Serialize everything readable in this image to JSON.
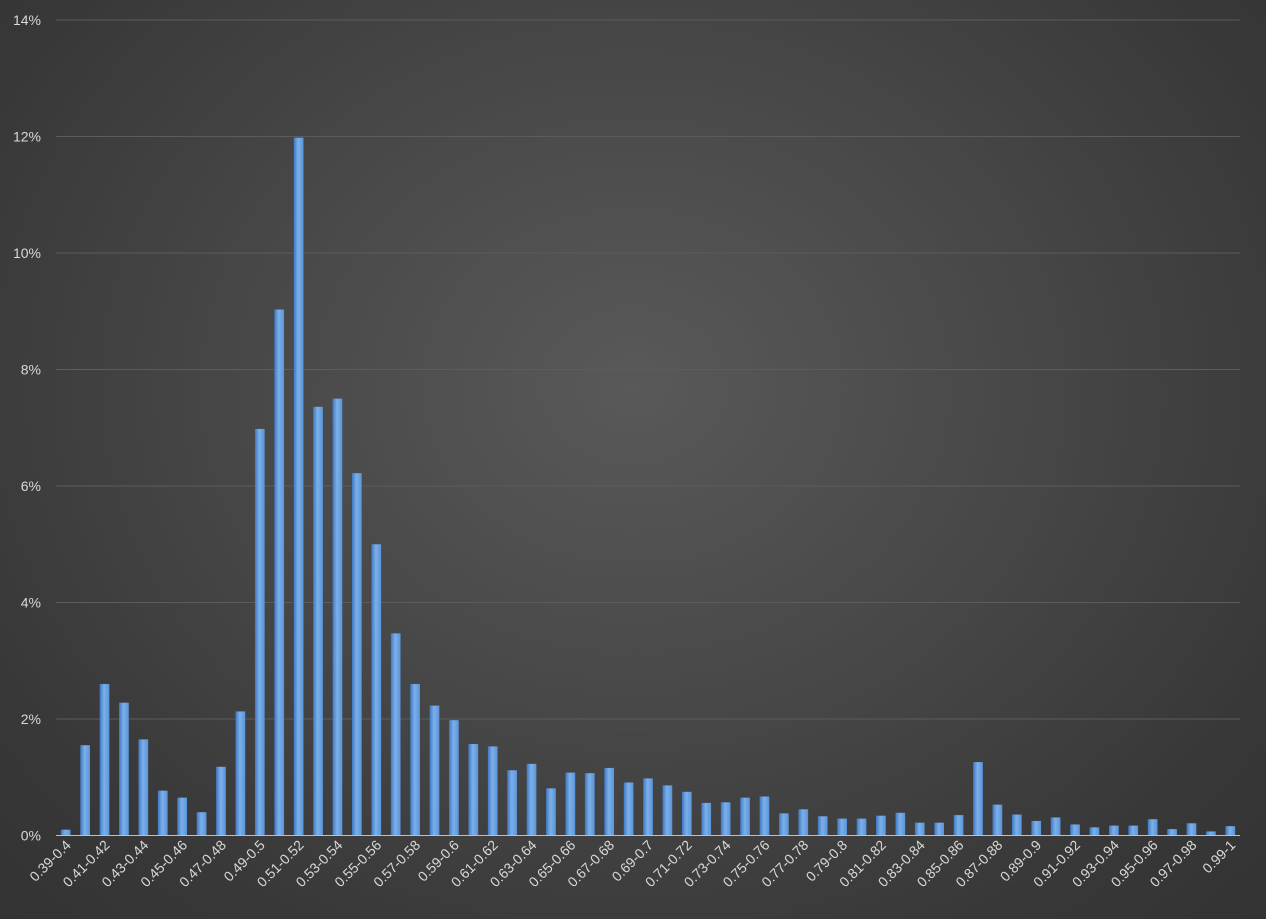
{
  "chart_data": {
    "type": "bar",
    "title": "",
    "xlabel": "",
    "ylabel": "",
    "ylim": [
      0,
      14
    ],
    "y_ticks": [
      "0%",
      "2%",
      "4%",
      "6%",
      "8%",
      "10%",
      "12%",
      "14%"
    ],
    "y_tick_values": [
      0,
      2,
      4,
      6,
      8,
      10,
      12,
      14
    ],
    "grid": true,
    "legend": "none",
    "colors": {
      "bar_light": "#7cb0ea",
      "bar_dark": "#3f78c2",
      "gridline": "#5c5c5c",
      "axis": "#bfbfbf",
      "text": "#d9d9d9"
    },
    "categories": [
      "0.39-0.4",
      "0.4-0.41",
      "0.41-0.42",
      "0.42-0.43",
      "0.43-0.44",
      "0.44-0.45",
      "0.45-0.46",
      "0.46-0.47",
      "0.47-0.48",
      "0.48-0.49",
      "0.49-0.5",
      "0.5-0.51",
      "0.51-0.52",
      "0.52-0.53",
      "0.53-0.54",
      "0.54-0.55",
      "0.55-0.56",
      "0.56-0.57",
      "0.57-0.58",
      "0.58-0.59",
      "0.59-0.6",
      "0.6-0.61",
      "0.61-0.62",
      "0.62-0.63",
      "0.63-0.64",
      "0.64-0.65",
      "0.65-0.66",
      "0.66-0.67",
      "0.67-0.68",
      "0.68-0.69",
      "0.69-0.7",
      "0.7-0.71",
      "0.71-0.72",
      "0.72-0.73",
      "0.73-0.74",
      "0.74-0.75",
      "0.75-0.76",
      "0.76-0.77",
      "0.77-0.78",
      "0.78-0.79",
      "0.79-0.8",
      "0.8-0.81",
      "0.81-0.82",
      "0.82-0.83",
      "0.83-0.84",
      "0.84-0.85",
      "0.85-0.86",
      "0.86-0.87",
      "0.87-0.88",
      "0.88-0.89",
      "0.89-0.9",
      "0.9-0.91",
      "0.91-0.92",
      "0.92-0.93",
      "0.93-0.94",
      "0.94-0.95",
      "0.95-0.96",
      "0.96-0.97",
      "0.97-0.98",
      "0.98-0.99",
      "0.99-1"
    ],
    "visible_category_labels": [
      "0.39-0.4",
      "0.41-0.42",
      "0.43-0.44",
      "0.45-0.46",
      "0.47-0.48",
      "0.49-0.5",
      "0.51-0.52",
      "0.53-0.54",
      "0.55-0.56",
      "0.57-0.58",
      "0.59-0.6",
      "0.61-0.62",
      "0.63-0.64",
      "0.65-0.66",
      "0.67-0.68",
      "0.69-0.7",
      "0.71-0.72",
      "0.73-0.74",
      "0.75-0.76",
      "0.77-0.78",
      "0.79-0.8",
      "0.81-0.82",
      "0.83-0.84",
      "0.85-0.86",
      "0.87-0.88",
      "0.89-0.9",
      "0.91-0.92",
      "0.93-0.94",
      "0.95-0.96",
      "0.97-0.98",
      "0.99-1"
    ],
    "values": [
      0.1,
      1.55,
      2.6,
      2.28,
      1.65,
      0.77,
      0.65,
      0.4,
      1.18,
      2.13,
      6.98,
      9.03,
      11.98,
      7.36,
      7.5,
      6.22,
      5.0,
      3.47,
      2.6,
      2.23,
      1.98,
      1.57,
      1.53,
      1.12,
      1.23,
      0.81,
      1.08,
      1.07,
      1.16,
      0.91,
      0.98,
      0.86,
      0.75,
      0.56,
      0.57,
      0.65,
      0.67,
      0.38,
      0.45,
      0.33,
      0.29,
      0.29,
      0.34,
      0.39,
      0.22,
      0.22,
      0.35,
      1.26,
      0.53,
      0.36,
      0.25,
      0.31,
      0.19,
      0.14,
      0.17,
      0.17,
      0.28,
      0.11,
      0.21,
      0.07,
      0.16
    ]
  }
}
